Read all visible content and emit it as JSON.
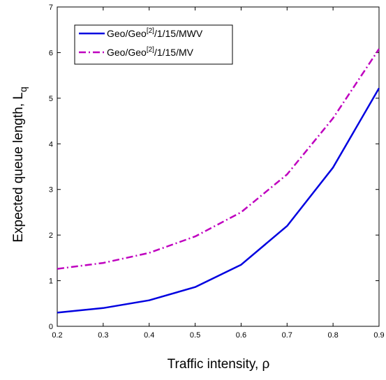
{
  "chart_data": {
    "type": "line",
    "xlabel": "Traffic intensity, ρ",
    "ylabel": {
      "main": "Expected queue length, L",
      "sub": "q"
    },
    "xlim": [
      0.2,
      0.9
    ],
    "ylim": [
      0,
      7
    ],
    "xticks": [
      "0.2",
      "0.3",
      "0.4",
      "0.5",
      "0.6",
      "0.7",
      "0.8",
      "0.9"
    ],
    "yticks": [
      "0",
      "1",
      "2",
      "3",
      "4",
      "5",
      "6",
      "7"
    ],
    "grid": false,
    "legend_position": "top-left",
    "x": [
      0.2,
      0.3,
      0.4,
      0.5,
      0.6,
      0.7,
      0.8,
      0.9
    ],
    "series": [
      {
        "name": "Geo/Geo[2]/1/15/MWV",
        "label_parts": {
          "pre": "Geo/Geo",
          "sup": "[2]",
          "post": "/1/15/MWV"
        },
        "color": "#0000e0",
        "style": "solid",
        "values": [
          0.3,
          0.4,
          0.57,
          0.86,
          1.35,
          2.2,
          3.48,
          5.22
        ]
      },
      {
        "name": "Geo/Geo[2]/1/15/MV",
        "label_parts": {
          "pre": "Geo/Geo",
          "sup": "[2]",
          "post": "/1/15/MV"
        },
        "color": "#bf00bf",
        "style": "dashdot",
        "values": [
          1.26,
          1.39,
          1.61,
          1.97,
          2.5,
          3.33,
          4.56,
          6.08
        ]
      }
    ]
  }
}
